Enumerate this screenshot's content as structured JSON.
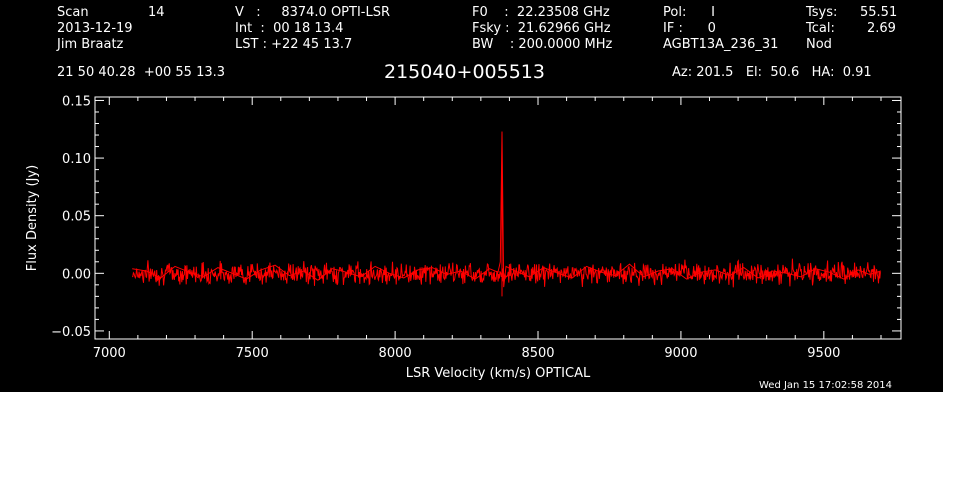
{
  "header": {
    "col1": {
      "scan_label": "Scan",
      "scan_value": "14",
      "date": "2013-12-19",
      "observer": "Jim Braatz"
    },
    "col2": {
      "v_line": "V   :     8374.0 OPTI-LSR",
      "int_line": "Int  :  00 18 13.4",
      "lst_line": "LST : +22 45 13.7"
    },
    "col3": {
      "f0_line": "F0    :  22.23508 GHz",
      "fsky_line": "Fsky :  21.62966 GHz",
      "bw_line": "BW    : 200.0000 MHz"
    },
    "col4": {
      "pol_line": "Pol:      I",
      "if_line": "IF :      0",
      "project": "AGBT13A_236_31"
    },
    "col5": {
      "tsys_label": "Tsys:",
      "tsys_value": "55.51",
      "tcal_label": "Tcal:",
      "tcal_value": "2.69",
      "mode": "Nod"
    },
    "coords": "21 50 40.28  +00 55 13.3",
    "source": "215040+005513",
    "pointing": "Az: 201.5   El:  50.6   HA:  0.91"
  },
  "footer": {
    "timestamp": "Wed Jan 15 17:02:58 2014"
  },
  "colors": {
    "background": "#000000",
    "foreground": "#ffffff",
    "series": "#ff0000"
  },
  "chart_data": {
    "type": "line",
    "title": "215040+005513",
    "xlabel": "LSR Velocity (km/s) OPTICAL",
    "ylabel": "Flux Density (Jy)",
    "xlim": [
      6950,
      9770
    ],
    "ylim": [
      -0.057,
      0.153
    ],
    "x_ticks": [
      7000,
      7500,
      8000,
      8500,
      9000,
      9500
    ],
    "x_tick_labels": [
      "7000",
      "7500",
      "8000",
      "8500",
      "9000",
      "9500"
    ],
    "y_ticks": [
      -0.05,
      0.0,
      0.05,
      0.1,
      0.15
    ],
    "y_tick_labels": [
      "−0.05",
      "0.00",
      "0.05",
      "0.10",
      "0.15"
    ],
    "grid": false,
    "series": [
      {
        "x": [
          7080,
          7130,
          7180,
          7230,
          7280,
          7330,
          7380,
          7430,
          7480,
          7530,
          7580,
          7630,
          7680,
          7730,
          7780,
          7830,
          7880,
          7930,
          7980,
          8030,
          8080,
          8130,
          8180,
          8230,
          8280,
          8330,
          8360,
          8368,
          8374,
          8380,
          8388,
          8420,
          8470,
          8520,
          8570,
          8620,
          8670,
          8720,
          8770,
          8820,
          8870,
          8920,
          8970,
          9020,
          9070,
          9120,
          9170,
          9220,
          9270,
          9320,
          9370,
          9420,
          9470,
          9520,
          9570,
          9620,
          9660,
          9700
        ],
        "y": [
          0.004,
          0.002,
          -0.004,
          0.006,
          0.001,
          -0.003,
          0.005,
          0.0,
          -0.005,
          0.003,
          0.007,
          -0.002,
          0.002,
          -0.006,
          0.004,
          0.001,
          -0.003,
          0.006,
          0.0,
          -0.004,
          0.003,
          0.005,
          -0.001,
          0.002,
          -0.005,
          0.004,
          0.001,
          0.01,
          0.123,
          -0.012,
          0.006,
          0.002,
          -0.003,
          0.005,
          0.0,
          -0.004,
          0.006,
          0.001,
          -0.002,
          0.008,
          -0.003,
          0.002,
          0.004,
          -0.005,
          0.001,
          0.003,
          -0.002,
          0.005,
          -0.004,
          0.002,
          0.0,
          -0.003,
          0.004,
          0.001,
          -0.005,
          0.003,
          -0.001,
          0.002
        ]
      }
    ]
  }
}
